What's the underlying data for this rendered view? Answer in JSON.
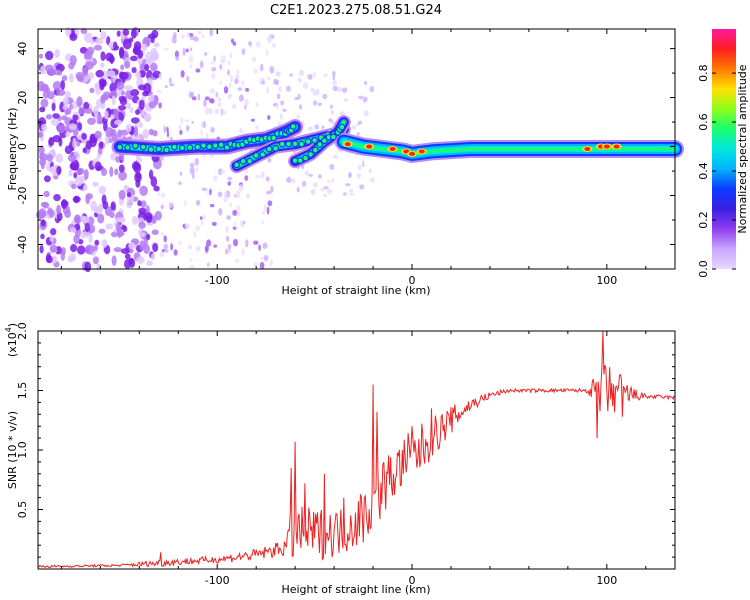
{
  "title": "C2E1.2023.275.08.51.G24",
  "chart_data": [
    {
      "type": "heatmap",
      "title": "C2E1.2023.275.08.51.G24",
      "xlabel": "Height of straight line (km)",
      "ylabel": "Frequency (Hz)",
      "xlim": [
        -192,
        135
      ],
      "ylim": [
        -50,
        48
      ],
      "xticks": [
        -100,
        0,
        100
      ],
      "xtick_labels": [
        "-100",
        "0",
        "100"
      ],
      "yticks": [
        -40,
        -20,
        0,
        20,
        40
      ],
      "ytick_labels": [
        "-40",
        "-20",
        "0",
        "20",
        "40"
      ],
      "colorbar": {
        "label": "Normalized spectral amplitude",
        "range": [
          0,
          0.98
        ],
        "ticks": [
          0,
          0.2,
          0.4,
          0.6,
          0.8
        ],
        "tick_labels": [
          "0.0",
          "0.2",
          "0.4",
          "0.6",
          "0.8"
        ],
        "colormap": [
          "#e8d8ff",
          "#c9a6ff",
          "#8f3ef0",
          "#3c1fe0",
          "#0a3cff",
          "#00b2ff",
          "#00e8e0",
          "#19ff70",
          "#8cff1a",
          "#ffe000",
          "#ff7a00",
          "#ff1e1e",
          "#ff1aa0"
        ]
      },
      "ridge": {
        "main_track": [
          [
            -150,
            0
          ],
          [
            -130,
            -1
          ],
          [
            -110,
            0
          ],
          [
            -95,
            0
          ],
          [
            -85,
            2
          ],
          [
            -75,
            3
          ],
          [
            -65,
            6
          ],
          [
            -60,
            8
          ]
        ],
        "lower_track": [
          [
            -90,
            -8
          ],
          [
            -80,
            -4
          ],
          [
            -70,
            0
          ],
          [
            -60,
            1
          ],
          [
            -50,
            3
          ],
          [
            -40,
            5
          ],
          [
            -35,
            7
          ]
        ],
        "upper_track": [
          [
            -60,
            -6
          ],
          [
            -52,
            -3
          ],
          [
            -45,
            2
          ],
          [
            -38,
            6
          ],
          [
            -35,
            10
          ]
        ],
        "flat_track": [
          [
            -35,
            2
          ],
          [
            -25,
            0
          ],
          [
            -15,
            -1
          ],
          [
            -5,
            -2
          ],
          [
            0,
            -3
          ],
          [
            10,
            -2
          ],
          [
            30,
            -1
          ],
          [
            60,
            -1
          ],
          [
            90,
            -1
          ],
          [
            135,
            -1
          ]
        ],
        "hot_spots": [
          [
            -33,
            1
          ],
          [
            -22,
            0
          ],
          [
            -10,
            -1
          ],
          [
            -3,
            -2
          ],
          [
            0,
            -3
          ],
          [
            5,
            -2
          ],
          [
            90,
            -1
          ],
          [
            97,
            0
          ],
          [
            100,
            0
          ],
          [
            105,
            0
          ]
        ]
      }
    },
    {
      "type": "line",
      "xlabel": "Height of straight line (km)",
      "ylabel": "SNR (10 * v/v)",
      "y_scale_label": "(x10",
      "y_scale_exp": "4",
      "y_scale_suffix": ")",
      "xlim": [
        -192,
        135
      ],
      "ylim": [
        0,
        2.0
      ],
      "xticks": [
        -100,
        0,
        100
      ],
      "xtick_labels": [
        "-100",
        "0",
        "100"
      ],
      "yticks": [
        0.5,
        1.0,
        1.5,
        2.0
      ],
      "ytick_labels": [
        "0.5",
        "1.0",
        "1.5",
        "2.0"
      ],
      "color": "#ee2222",
      "envelope": {
        "x": [
          -192,
          -170,
          -150,
          -130,
          -120,
          -110,
          -100,
          -90,
          -80,
          -70,
          -64,
          -62,
          -55,
          -45,
          -35,
          -25,
          -20,
          -15,
          -10,
          -5,
          0,
          10,
          20,
          30,
          40,
          50,
          60,
          70,
          80,
          90,
          95,
          98,
          100,
          105,
          110,
          115,
          120,
          135
        ],
        "base": [
          0.02,
          0.025,
          0.03,
          0.05,
          0.06,
          0.07,
          0.08,
          0.1,
          0.12,
          0.16,
          0.2,
          0.3,
          0.3,
          0.3,
          0.32,
          0.45,
          0.55,
          0.7,
          0.78,
          0.88,
          0.93,
          1.1,
          1.25,
          1.38,
          1.46,
          1.5,
          1.5,
          1.5,
          1.5,
          1.5,
          1.5,
          1.45,
          1.48,
          1.5,
          1.47,
          1.46,
          1.45,
          1.44
        ],
        "amp": [
          0.01,
          0.01,
          0.01,
          0.03,
          0.03,
          0.03,
          0.03,
          0.04,
          0.05,
          0.06,
          0.1,
          0.25,
          0.22,
          0.22,
          0.2,
          0.25,
          0.25,
          0.25,
          0.22,
          0.22,
          0.25,
          0.18,
          0.12,
          0.06,
          0.03,
          0.015,
          0.015,
          0.015,
          0.015,
          0.02,
          0.15,
          0.3,
          0.25,
          0.2,
          0.12,
          0.05,
          0.02,
          0.015
        ]
      },
      "spikes": [
        [
          -129,
          0.14
        ],
        [
          -62,
          0.85
        ],
        [
          -60,
          1.07
        ],
        [
          -55,
          0.72
        ],
        [
          -45,
          0.8
        ],
        [
          -35,
          0.6
        ],
        [
          -20,
          1.55
        ],
        [
          -18,
          1.32
        ],
        [
          -5,
          1.0
        ],
        [
          0,
          1.2
        ],
        [
          10,
          1.35
        ],
        [
          98,
          2.0
        ],
        [
          97,
          1.55
        ],
        [
          100,
          1.5
        ],
        [
          103,
          1.37
        ],
        [
          108,
          1.28
        ],
        [
          95,
          1.1
        ]
      ]
    }
  ]
}
